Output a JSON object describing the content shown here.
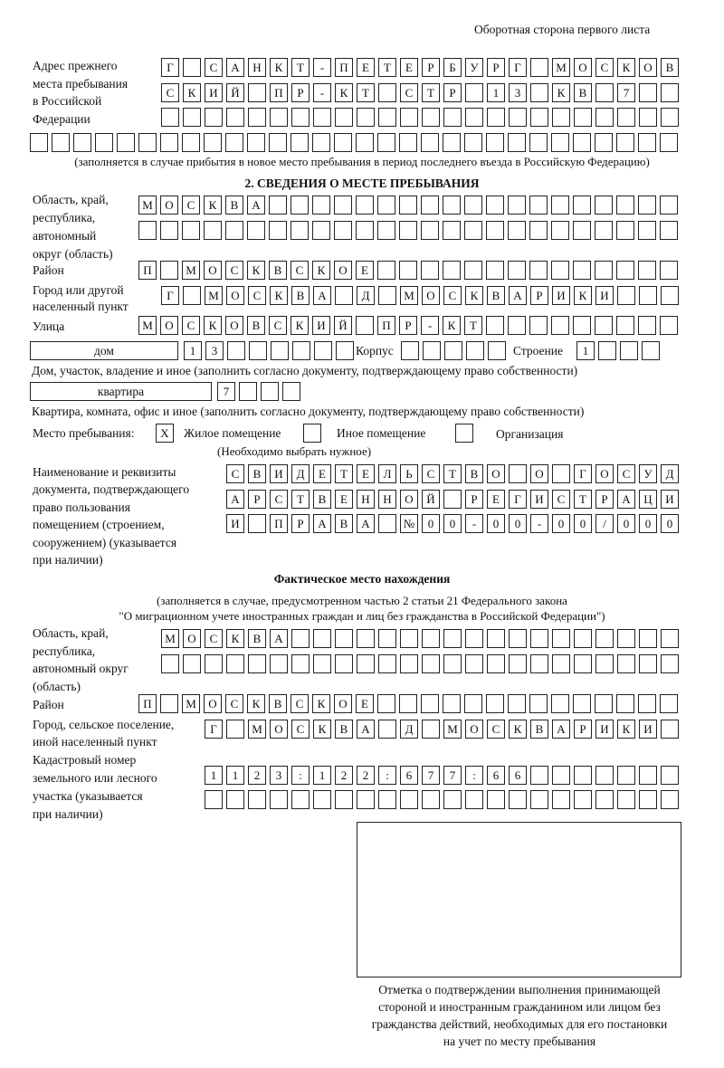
{
  "header": {
    "title": "Оборотная сторона первого листа"
  },
  "prev_address": {
    "label": [
      "Адрес прежнего",
      "места пребывания",
      "в Российской",
      "Федерации"
    ],
    "rows": [
      [
        "Г",
        " ",
        "С",
        "А",
        "Н",
        "К",
        "Т",
        "-",
        "П",
        "Е",
        "Т",
        "Е",
        "Р",
        "Б",
        "У",
        "Р",
        "Г",
        " ",
        "М",
        "О",
        "С",
        "К",
        "О",
        "В"
      ],
      [
        "С",
        "К",
        "И",
        "Й",
        " ",
        "П",
        "Р",
        "-",
        "К",
        "Т",
        " ",
        "С",
        "Т",
        "Р",
        " ",
        "1",
        "3",
        " ",
        "К",
        "В",
        " ",
        "7",
        " ",
        " "
      ],
      [],
      []
    ],
    "note": "(заполняется в случае прибытия в новое место пребывания в период последнего въезда в Российскую Федерацию)"
  },
  "section2": {
    "title": "2. СВЕДЕНИЯ О МЕСТЕ ПРЕБЫВАНИЯ",
    "region_label": [
      "Область, край,",
      "республика,",
      "автономный",
      "округ (область)"
    ],
    "region_rows": [
      [
        "М",
        "О",
        "С",
        "К",
        "В",
        "А"
      ],
      []
    ],
    "district_label": "Район",
    "district": [
      "П",
      " ",
      "М",
      "О",
      "С",
      "К",
      "В",
      "С",
      "К",
      "О",
      "Е"
    ],
    "city_label": [
      "Город или другой",
      "населенный пункт"
    ],
    "city": [
      "Г",
      " ",
      "М",
      "О",
      "С",
      "К",
      "В",
      "А",
      " ",
      "Д",
      " ",
      "М",
      "О",
      "С",
      "К",
      "В",
      "А",
      "Р",
      "И",
      "К",
      "И"
    ],
    "street_label": "Улица",
    "street": [
      "М",
      "О",
      "С",
      "К",
      "О",
      "В",
      "С",
      "К",
      "И",
      "Й",
      " ",
      "П",
      "Р",
      "-",
      "К",
      "Т"
    ],
    "house_type": "дом",
    "house": [
      "1",
      "3"
    ],
    "korpus_label": "Корпус",
    "korpus": [],
    "building_label": "Строение",
    "building": [
      "1"
    ],
    "house_note": "Дом, участок, владение и иное (заполнить согласно документу, подтверждающему право собственности)",
    "apt_type": "квартира",
    "apt": [
      "7"
    ],
    "apt_note": "Квартира, комната, офис и иное (заполнить согласно документу, подтверждающему право собственности)",
    "stay_label": "Место пребывания:",
    "stay_options": [
      {
        "label": "Жилое помещение",
        "mark": "X"
      },
      {
        "label": "Иное помещение",
        "mark": ""
      },
      {
        "label": "Организация",
        "mark": ""
      }
    ],
    "stay_note": "(Необходимо выбрать нужное)",
    "doc_label": [
      "Наименование и реквизиты",
      "документа, подтверждающего",
      "право пользования",
      "помещением (строением,",
      "сооружением) (указывается",
      "при наличии)"
    ],
    "doc_rows": [
      [
        "С",
        "В",
        "И",
        "Д",
        "Е",
        "Т",
        "Е",
        "Л",
        "Ь",
        "С",
        "Т",
        "В",
        "О",
        " ",
        "О",
        " ",
        "Г",
        "О",
        "С",
        "У",
        "Д"
      ],
      [
        "А",
        "Р",
        "С",
        "Т",
        "В",
        "Е",
        "Н",
        "Н",
        "О",
        "Й",
        " ",
        "Р",
        "Е",
        "Г",
        "И",
        "С",
        "Т",
        "Р",
        "А",
        "Ц",
        "И"
      ],
      [
        "И",
        " ",
        "П",
        "Р",
        "А",
        "В",
        "А",
        " ",
        "№",
        "0",
        "0",
        "-",
        "0",
        "0",
        "-",
        "0",
        "0",
        "/",
        "0",
        "0",
        "0"
      ]
    ]
  },
  "actual": {
    "title": "Фактическое место нахождения",
    "note": [
      "(заполняется в случае, предусмотренном частью 2 статьи 21 Федерального закона",
      "\"О миграционном учете иностранных граждан и лиц без гражданства в Российской Федерации\")"
    ],
    "region_label": [
      "Область, край,",
      "республика,",
      "автономный округ",
      "(область)"
    ],
    "region_rows": [
      [
        "М",
        "О",
        "С",
        "К",
        "В",
        "А"
      ],
      []
    ],
    "district_label": "Район",
    "district": [
      "П",
      " ",
      "М",
      "О",
      "С",
      "К",
      "В",
      "С",
      "К",
      "О",
      "Е"
    ],
    "city_label": [
      "Город, сельское поселение,",
      "иной населенный пункт"
    ],
    "city": [
      "Г",
      " ",
      "М",
      "О",
      "С",
      "К",
      "В",
      "А",
      " ",
      "Д",
      " ",
      "М",
      "О",
      "С",
      "К",
      "В",
      "А",
      "Р",
      "И",
      "К",
      "И"
    ],
    "cadastral_label": [
      "Кадастровый номер",
      "земельного или лесного",
      "участка (указывается",
      "при наличии)"
    ],
    "cadastral_rows": [
      [
        "1",
        "1",
        "2",
        "3",
        ":",
        "1",
        "2",
        "2",
        ":",
        "6",
        "7",
        "7",
        ":",
        "6",
        "6"
      ],
      []
    ]
  },
  "confirmation": {
    "caption": [
      "Отметка о подтверждении выполнения принимающей",
      "стороной и иностранным гражданином или лицом без",
      "гражданства действий, необходимых для его постановки",
      "на учет по месту пребывания"
    ]
  }
}
